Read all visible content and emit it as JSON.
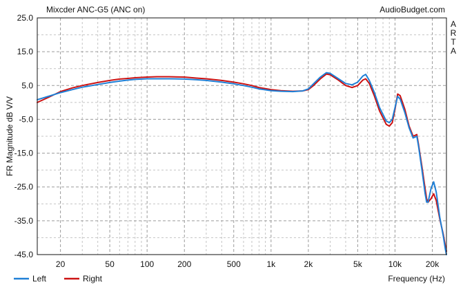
{
  "header": {
    "title": "Mixcder ANC-G5 (ANC on)",
    "source": "AudioBudget.com",
    "side_label": [
      "A",
      "R",
      "T",
      "A"
    ]
  },
  "colors": {
    "left": "#1e7fd6",
    "right": "#cc1111",
    "grid_major": "#9a9a9a",
    "grid_minor": "#c4c4c4",
    "axis": "#111111"
  },
  "chart_data": {
    "type": "line",
    "title": "Mixcder ANC-G5 (ANC on)",
    "xlabel": "Frequency (Hz)",
    "ylabel": "FR Magnitude dB V/V",
    "x_scale": "log",
    "xlim": [
      13,
      26000
    ],
    "ylim": [
      -45,
      25
    ],
    "grid": true,
    "legend_position": "bottom-left",
    "y_ticks": [
      {
        "value": 25,
        "label": "25.0"
      },
      {
        "value": 15,
        "label": "15.0"
      },
      {
        "value": 5,
        "label": "5.0"
      },
      {
        "value": -5,
        "label": "-5.0"
      },
      {
        "value": -15,
        "label": "-15.0"
      },
      {
        "value": -25,
        "label": "-25.0"
      },
      {
        "value": -35,
        "label": "-35.0"
      },
      {
        "value": -45,
        "label": "-45.0"
      }
    ],
    "x_ticks": [
      {
        "value": 20,
        "label": "20"
      },
      {
        "value": 50,
        "label": "50"
      },
      {
        "value": 100,
        "label": "100"
      },
      {
        "value": 200,
        "label": "200"
      },
      {
        "value": 500,
        "label": "500"
      },
      {
        "value": 1000,
        "label": "1k"
      },
      {
        "value": 2000,
        "label": "2k"
      },
      {
        "value": 5000,
        "label": "5k"
      },
      {
        "value": 10000,
        "label": "10k"
      },
      {
        "value": 20000,
        "label": "20k"
      }
    ],
    "series": [
      {
        "name": "Left",
        "color": "#1e7fd6",
        "points": [
          [
            13,
            0.8
          ],
          [
            16,
            1.8
          ],
          [
            20,
            2.9
          ],
          [
            25,
            3.8
          ],
          [
            30,
            4.5
          ],
          [
            40,
            5.3
          ],
          [
            50,
            5.9
          ],
          [
            60,
            6.3
          ],
          [
            70,
            6.6
          ],
          [
            80,
            6.8
          ],
          [
            100,
            7.0
          ],
          [
            120,
            7.0
          ],
          [
            150,
            7.0
          ],
          [
            200,
            6.9
          ],
          [
            250,
            6.7
          ],
          [
            300,
            6.5
          ],
          [
            400,
            6.0
          ],
          [
            500,
            5.5
          ],
          [
            600,
            5.0
          ],
          [
            700,
            4.5
          ],
          [
            800,
            4.0
          ],
          [
            1000,
            3.5
          ],
          [
            1200,
            3.3
          ],
          [
            1500,
            3.2
          ],
          [
            1800,
            3.4
          ],
          [
            2000,
            4.0
          ],
          [
            2200,
            5.5
          ],
          [
            2500,
            7.5
          ],
          [
            2800,
            8.8
          ],
          [
            3000,
            8.6
          ],
          [
            3500,
            7.0
          ],
          [
            4000,
            5.6
          ],
          [
            4500,
            5.2
          ],
          [
            5000,
            6.0
          ],
          [
            5500,
            7.8
          ],
          [
            5800,
            8.3
          ],
          [
            6200,
            6.5
          ],
          [
            6800,
            3.0
          ],
          [
            7500,
            -1.5
          ],
          [
            8500,
            -5.5
          ],
          [
            9000,
            -6.0
          ],
          [
            9500,
            -5.0
          ],
          [
            10000,
            -1.5
          ],
          [
            10500,
            1.8
          ],
          [
            11000,
            1.0
          ],
          [
            12000,
            -3.0
          ],
          [
            13000,
            -7.5
          ],
          [
            14000,
            -10.5
          ],
          [
            15000,
            -10.0
          ],
          [
            15500,
            -13.0
          ],
          [
            16500,
            -20.0
          ],
          [
            17500,
            -27.0
          ],
          [
            18000,
            -29.5
          ],
          [
            18500,
            -29.5
          ],
          [
            19500,
            -25.5
          ],
          [
            20500,
            -23.5
          ],
          [
            21500,
            -26.5
          ],
          [
            23000,
            -34.0
          ],
          [
            24500,
            -39.5
          ],
          [
            25500,
            -43.5
          ],
          [
            26000,
            -45.0
          ]
        ]
      },
      {
        "name": "Right",
        "color": "#cc1111",
        "points": [
          [
            13,
            0.0
          ],
          [
            16,
            1.5
          ],
          [
            20,
            3.2
          ],
          [
            25,
            4.3
          ],
          [
            30,
            5.0
          ],
          [
            40,
            5.9
          ],
          [
            50,
            6.5
          ],
          [
            60,
            6.9
          ],
          [
            70,
            7.1
          ],
          [
            80,
            7.3
          ],
          [
            100,
            7.5
          ],
          [
            120,
            7.6
          ],
          [
            150,
            7.6
          ],
          [
            200,
            7.5
          ],
          [
            250,
            7.2
          ],
          [
            300,
            7.0
          ],
          [
            400,
            6.5
          ],
          [
            500,
            6.0
          ],
          [
            600,
            5.5
          ],
          [
            700,
            5.0
          ],
          [
            800,
            4.4
          ],
          [
            1000,
            3.8
          ],
          [
            1200,
            3.5
          ],
          [
            1500,
            3.3
          ],
          [
            1800,
            3.4
          ],
          [
            2000,
            3.8
          ],
          [
            2200,
            5.0
          ],
          [
            2500,
            7.0
          ],
          [
            2800,
            8.4
          ],
          [
            3000,
            8.2
          ],
          [
            3500,
            6.6
          ],
          [
            4000,
            5.0
          ],
          [
            4500,
            4.4
          ],
          [
            5000,
            5.0
          ],
          [
            5500,
            6.6
          ],
          [
            5800,
            7.0
          ],
          [
            6200,
            5.6
          ],
          [
            6800,
            2.0
          ],
          [
            7500,
            -2.5
          ],
          [
            8500,
            -6.5
          ],
          [
            9000,
            -7.0
          ],
          [
            9500,
            -6.0
          ],
          [
            10000,
            -2.0
          ],
          [
            10500,
            2.5
          ],
          [
            11000,
            2.0
          ],
          [
            12000,
            -2.0
          ],
          [
            13000,
            -7.0
          ],
          [
            14000,
            -10.0
          ],
          [
            15000,
            -9.5
          ],
          [
            15500,
            -12.5
          ],
          [
            16500,
            -19.0
          ],
          [
            17500,
            -25.5
          ],
          [
            18000,
            -28.5
          ],
          [
            18500,
            -29.5
          ],
          [
            19500,
            -28.5
          ],
          [
            20500,
            -27.0
          ],
          [
            21500,
            -29.0
          ],
          [
            23000,
            -34.5
          ],
          [
            24500,
            -39.0
          ],
          [
            25500,
            -42.5
          ],
          [
            26000,
            -44.0
          ]
        ]
      }
    ]
  },
  "legend": {
    "items": [
      {
        "label": "Left",
        "color": "#1e7fd6"
      },
      {
        "label": "Right",
        "color": "#cc1111"
      }
    ]
  }
}
